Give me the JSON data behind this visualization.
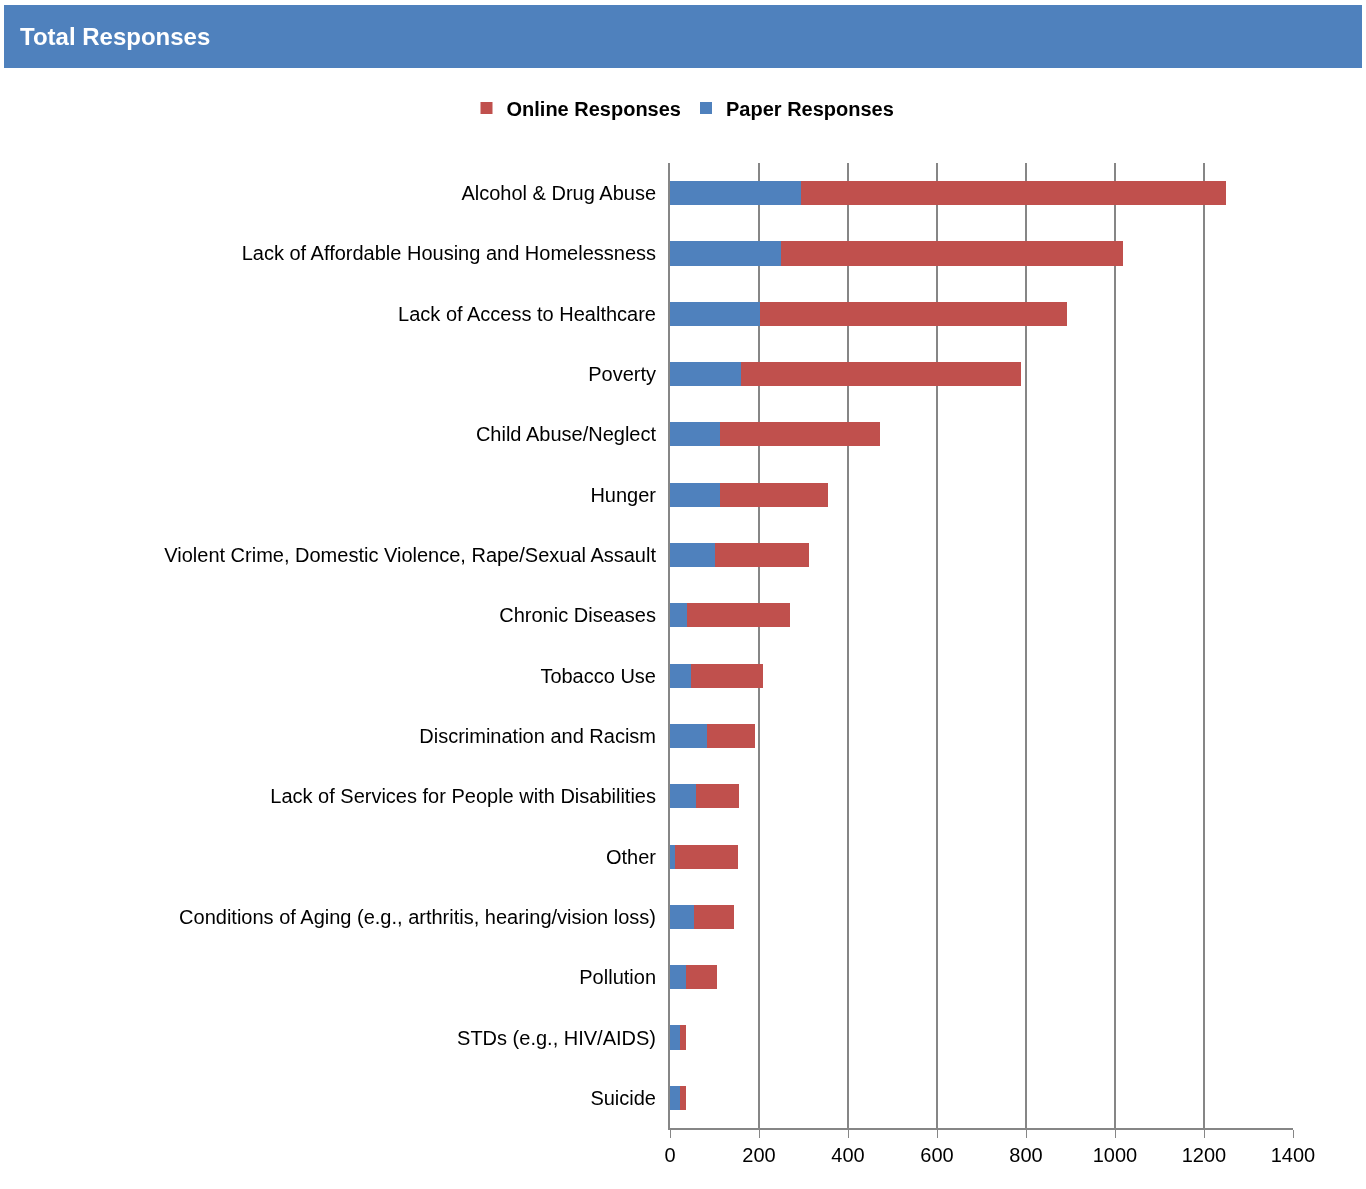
{
  "chart_data": {
    "type": "bar",
    "title": "Total Responses",
    "orientation": "horizontal",
    "stacked": true,
    "categories": [
      "Alcohol & Drug Abuse",
      "Lack of Affordable Housing and Homelessness",
      "Lack of Access to Healthcare",
      "Poverty",
      "Child Abuse/Neglect",
      "Hunger",
      "Violent Crime, Domestic Violence, Rape/Sexual Assault",
      "Chronic Diseases",
      "Tobacco Use",
      "Discrimination and Racism",
      "Lack of Services for People with Disabilities",
      "Other",
      "Conditions of Aging (e.g., arthritis, hearing/vision loss)",
      "Pollution",
      "STDs (e.g., HIV/AIDS)",
      "Suicide"
    ],
    "series": [
      {
        "name": "Paper Responses",
        "color": "#4f81bd",
        "values": [
          294,
          249,
          203,
          160,
          112,
          113,
          102,
          38,
          47,
          84,
          59,
          12,
          54,
          36,
          22,
          22
        ]
      },
      {
        "name": "Online Responses",
        "color": "#c0504d",
        "values": [
          955,
          768,
          688,
          628,
          359,
          241,
          210,
          232,
          161,
          106,
          97,
          140,
          89,
          69,
          14,
          14
        ]
      }
    ],
    "xlim": [
      0,
      1400
    ],
    "xticks": [
      0,
      200,
      400,
      600,
      800,
      1000,
      1200,
      1400
    ],
    "grid": "x",
    "legend": "top"
  }
}
